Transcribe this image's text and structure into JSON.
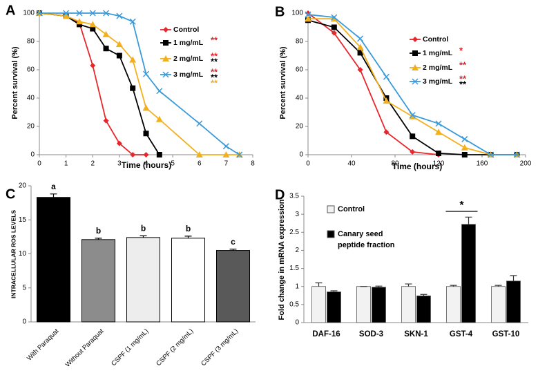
{
  "chart_data": [
    {
      "type": "line",
      "panel_label": "A",
      "xlabel": "Time (hours)",
      "ylabel": "Percent survival (%)",
      "x": [
        0,
        1,
        1.5,
        2,
        2.5,
        3,
        3.5,
        4,
        4.5,
        6,
        7,
        7.5
      ],
      "xlim": [
        0,
        8
      ],
      "xticks": [
        0,
        1,
        2,
        3,
        4,
        5,
        6,
        7,
        8
      ],
      "ylim": [
        0,
        100
      ],
      "yticks": [
        0,
        20,
        40,
        60,
        80,
        100
      ],
      "series": [
        {
          "name": "Control",
          "color": "#e8262b",
          "marker": "diamond",
          "values": [
            100,
            98,
            93,
            63,
            24,
            8,
            0,
            0,
            null,
            null,
            null,
            null
          ],
          "stars": []
        },
        {
          "name": "1 mg/mL",
          "color": "#000000",
          "marker": "square",
          "values": [
            100,
            98,
            92,
            89,
            75,
            70,
            47,
            15,
            0,
            null,
            null,
            null
          ],
          "stars": [
            {
              "text": "**",
              "color": "#e8262b"
            }
          ]
        },
        {
          "name": "2 mg/mL",
          "color": "#f2b01e",
          "marker": "triangle",
          "values": [
            100,
            98,
            94,
            92,
            85,
            78,
            67,
            33,
            25,
            0,
            0,
            0
          ],
          "stars": [
            {
              "text": "**",
              "color": "#e8262b"
            },
            {
              "text": "**",
              "color": "#000000"
            }
          ]
        },
        {
          "name": "3 mg/mL",
          "color": "#3a9ad9",
          "marker": "x",
          "values": [
            100,
            100,
            100,
            100,
            100,
            98,
            94,
            57,
            45,
            22,
            6,
            0
          ],
          "stars": [
            {
              "text": "**",
              "color": "#e8262b"
            },
            {
              "text": "**",
              "color": "#000000"
            },
            {
              "text": "**",
              "color": "#f2b01e"
            }
          ]
        }
      ]
    },
    {
      "type": "line",
      "panel_label": "B",
      "xlabel": "Time (hours)",
      "ylabel": "Percent survival (%)",
      "x": [
        0,
        24,
        48,
        72,
        96,
        120,
        144,
        168,
        192
      ],
      "xlim": [
        0,
        200
      ],
      "xticks": [
        0,
        40,
        80,
        120,
        160,
        200
      ],
      "ylim": [
        0,
        100
      ],
      "yticks": [
        0,
        20,
        40,
        60,
        80,
        100
      ],
      "series": [
        {
          "name": "Control",
          "color": "#e8262b",
          "marker": "diamond",
          "values": [
            100,
            86,
            60,
            16,
            2,
            0,
            null,
            null,
            null
          ],
          "stars": []
        },
        {
          "name": "1 mg/mL",
          "color": "#000000",
          "marker": "square",
          "values": [
            95,
            90,
            72,
            40,
            13,
            1,
            0,
            0,
            0
          ],
          "stars": [
            {
              "text": "*",
              "color": "#e8262b"
            }
          ]
        },
        {
          "name": "2 mg/mL",
          "color": "#f2b01e",
          "marker": "triangle",
          "values": [
            96,
            96,
            76,
            38,
            27,
            16,
            5,
            0,
            0
          ],
          "stars": [
            {
              "text": "**",
              "color": "#e8262b"
            }
          ]
        },
        {
          "name": "3 mg/mL",
          "color": "#3a9ad9",
          "marker": "x",
          "values": [
            99,
            97,
            82,
            55,
            28,
            22,
            11,
            0,
            0
          ],
          "stars": [
            {
              "text": "**",
              "color": "#e8262b"
            },
            {
              "text": "**",
              "color": "#000000"
            }
          ]
        }
      ]
    },
    {
      "type": "bar",
      "panel_label": "C",
      "ylabel": "INTRACELLULAR ROS LEVELS",
      "categories": [
        "With Paraquat",
        "Without Paraquat",
        "CSPF (1 mg/mL)",
        "CSPF (2 mg/mL)",
        "CSPF (3 mg/mL)"
      ],
      "values": [
        18.3,
        12.1,
        12.4,
        12.3,
        10.5
      ],
      "errors": [
        0.5,
        0.2,
        0.25,
        0.3,
        0.2
      ],
      "letters": [
        "a",
        "b",
        "b",
        "b",
        "c"
      ],
      "colors": [
        "#000000",
        "#8c8c8c",
        "#ededed",
        "#ffffff",
        "#595959"
      ],
      "ylim": [
        0,
        20
      ],
      "yticks": [
        0,
        5,
        10,
        15,
        20
      ]
    },
    {
      "type": "grouped-bar",
      "panel_label": "D",
      "ylabel": "Fold change  in mRNA expression",
      "categories": [
        "DAF-16",
        "SOD-3",
        "SKN-1",
        "GST-4",
        "GST-10"
      ],
      "series": [
        {
          "name": "Control",
          "color": "#f2f2f2",
          "values": [
            1.0,
            1.0,
            1.0,
            1.0,
            1.0
          ],
          "errors": [
            0.1,
            0,
            0.07,
            0.03,
            0.03
          ]
        },
        {
          "name": "Canary seed peptide fraction",
          "color": "#000000",
          "values": [
            0.85,
            0.98,
            0.74,
            2.72,
            1.15
          ],
          "errors": [
            0.03,
            0.03,
            0.04,
            0.2,
            0.15
          ]
        }
      ],
      "annotation": "*",
      "ylim": [
        0,
        3.5
      ],
      "yticks": [
        0,
        0.5,
        1,
        1.5,
        2,
        2.5,
        3,
        3.5
      ]
    }
  ]
}
